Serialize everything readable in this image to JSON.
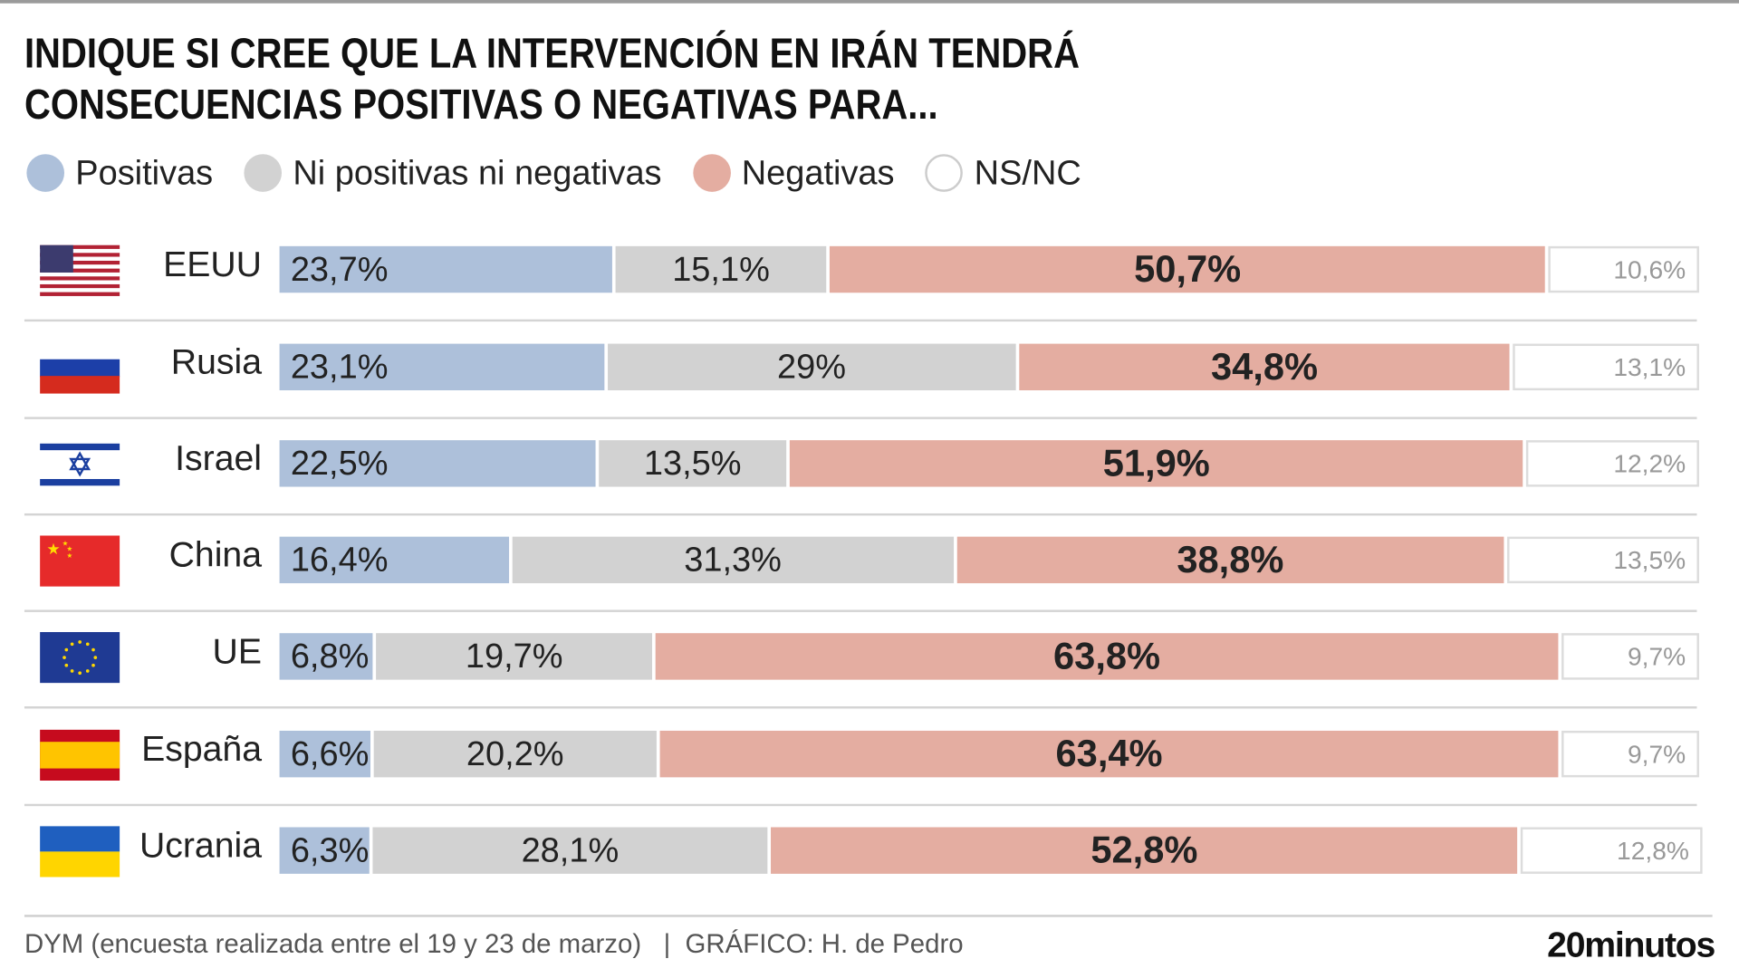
{
  "chart_data": {
    "type": "bar",
    "orientation": "horizontal-stacked",
    "title": "INDIQUE SI CREE QUE LA INTERVENCIÓN EN IRÁN TENDRÁ CONSECUENCIAS POSITIVAS O NEGATIVAS PARA...",
    "title_lines": [
      "INDIQUE SI CREE QUE LA INTERVENCIÓN EN IRÁN TENDRÁ",
      "CONSECUENCIAS POSITIVAS O NEGATIVAS PARA..."
    ],
    "categories": [
      "EEUU",
      "Rusia",
      "Israel",
      "China",
      "UE",
      "España",
      "Ucrania"
    ],
    "series": [
      {
        "name": "Positivas",
        "color": "#adc0da",
        "values": [
          23.7,
          23.1,
          22.5,
          16.4,
          6.8,
          6.6,
          6.3
        ],
        "labels": [
          "23,7%",
          "23,1%",
          "22,5%",
          "16,4%",
          "6,8%",
          "6,6%",
          "6,3%"
        ]
      },
      {
        "name": "Ni positivas ni negativas",
        "color": "#d2d2d2",
        "values": [
          15.1,
          29,
          13.5,
          31.3,
          19.7,
          20.2,
          28.1
        ],
        "labels": [
          "15,1%",
          "29%",
          "13,5%",
          "31,3%",
          "19,7%",
          "20,2%",
          "28,1%"
        ]
      },
      {
        "name": "Negativas",
        "color": "#e4ada1",
        "values": [
          50.7,
          34.8,
          51.9,
          38.8,
          63.8,
          63.4,
          52.8
        ],
        "labels": [
          "50,7%",
          "34,8%",
          "51,9%",
          "38,8%",
          "63,8%",
          "63,4%",
          "52,8%"
        ]
      },
      {
        "name": "NS/NC",
        "color": "#ffffff",
        "values": [
          10.6,
          13.1,
          12.2,
          13.5,
          9.7,
          9.7,
          12.8
        ],
        "labels": [
          "10,6%",
          "13,1%",
          "12,2%",
          "13,5%",
          "9,7%",
          "9,7%",
          "12,8%"
        ]
      }
    ],
    "flags": [
      "us-flag",
      "russia-flag",
      "israel-flag",
      "china-flag",
      "eu-flag",
      "spain-flag",
      "ukraine-flag"
    ],
    "legend": "top-left",
    "grid": false
  },
  "footer": {
    "source": "DYM (encuesta realizada entre el 19 y 23 de marzo)   |  GRÁFICO: H. de Pedro",
    "brand": "20minutos"
  }
}
